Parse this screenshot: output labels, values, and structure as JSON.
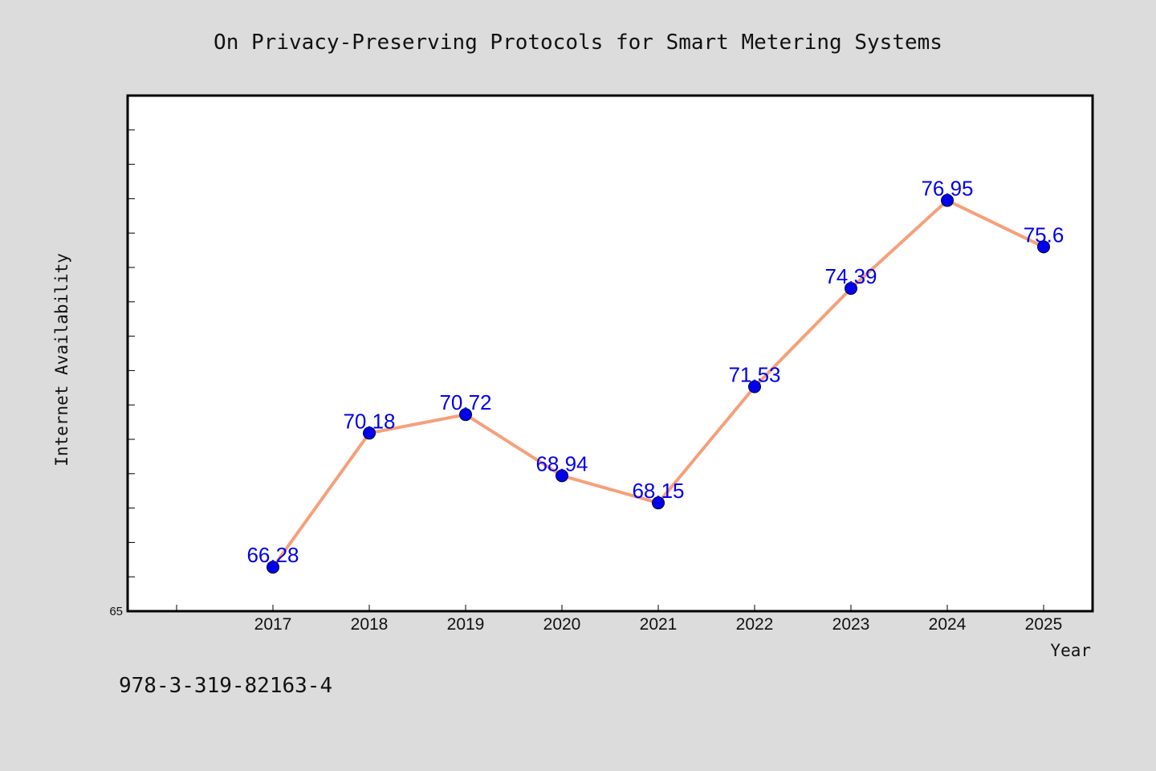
{
  "chart_data": {
    "type": "line",
    "title": "On Privacy-Preserving Protocols for Smart Metering Systems",
    "xlabel": "Year",
    "ylabel": "Internet Availability",
    "x": [
      "2017",
      "2018",
      "2019",
      "2020",
      "2021",
      "2022",
      "2023",
      "2024",
      "2025"
    ],
    "series": [
      {
        "values": [
          66.28,
          70.18,
          70.72,
          68.94,
          68.15,
          71.53,
          74.39,
          76.95,
          75.6
        ],
        "data_labels": [
          "66.28",
          "70.18",
          "70.72",
          "68.94",
          "68.15",
          "71.53",
          "74.39",
          "76.95",
          "75.6"
        ]
      }
    ],
    "ylim": [
      65,
      80
    ],
    "y_tick_labels": [
      "65"
    ],
    "grid": false,
    "line_color": "#f5a07a",
    "marker_color": "#0000ee",
    "label_color": "#0000ee"
  },
  "footer": {
    "isbn": "978-3-319-82163-4"
  }
}
